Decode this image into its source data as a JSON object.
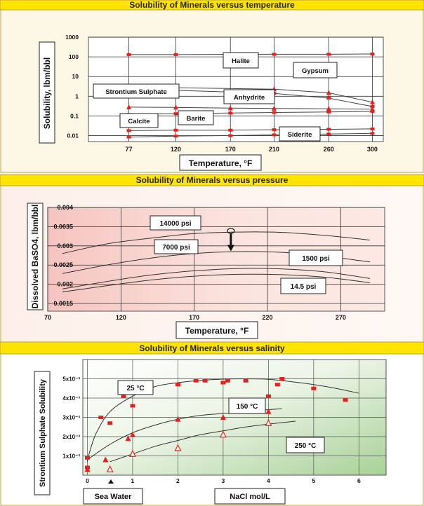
{
  "colors": {
    "banner_yellow": "#ffe400",
    "panel_border": "#b9a23e",
    "panel1_bg": "#fdf8e6",
    "marker_red": "#e8201c",
    "curve_dark": "#444444"
  },
  "chart_data": [
    {
      "type": "line",
      "title": "Solubility of Minerals versus temperature",
      "xlabel": "Temperature, °F",
      "ylabel": "Solubility, lbm/bbl",
      "yscale": "log",
      "ylim": [
        0.005,
        1000
      ],
      "xlim": [
        40,
        310
      ],
      "ytick_labels": [
        "1000",
        "100",
        "10",
        "1",
        "0.1",
        "0.01"
      ],
      "yticks": [
        1000,
        100,
        10,
        1,
        0.1,
        0.01
      ],
      "xticks": [
        77,
        120,
        170,
        210,
        260,
        300
      ],
      "xtick_labels": [
        "77",
        "120",
        "170",
        "210",
        "260",
        "300"
      ],
      "grid": true,
      "series": [
        {
          "name": "Halite",
          "x": [
            77,
            120,
            210,
            260,
            300
          ],
          "y": [
            130,
            130,
            135,
            135,
            140
          ],
          "marker": "square"
        },
        {
          "name": "Gypsum",
          "x": [
            77,
            120,
            210,
            260,
            300
          ],
          "y": [
            2.8,
            2.7,
            2.3,
            1.5,
            0.5
          ],
          "marker": "triangle"
        },
        {
          "name": "Strontium Sulphate",
          "x": [
            77,
            120,
            210,
            260,
            300
          ],
          "y": [
            2.3,
            2.0,
            1.4,
            0.8,
            0.3
          ],
          "marker": "square"
        },
        {
          "name": "Anhydrite",
          "x": [
            77,
            120,
            170,
            210,
            260,
            300
          ],
          "y": [
            0.28,
            0.27,
            0.25,
            0.24,
            0.23,
            0.22
          ],
          "marker": "triangle"
        },
        {
          "name": "Barite",
          "x": [
            77,
            120,
            170,
            210,
            260,
            300
          ],
          "y": [
            0.12,
            0.13,
            0.14,
            0.15,
            0.16,
            0.17
          ],
          "marker": "square"
        },
        {
          "name": "Calcite",
          "x": [
            77,
            120,
            170,
            210,
            260,
            300
          ],
          "y": [
            0.018,
            0.019,
            0.019,
            0.02,
            0.021,
            0.022
          ],
          "marker": "square"
        },
        {
          "name": "Siderite",
          "x": [
            77,
            120,
            170,
            210,
            260,
            300
          ],
          "y": [
            0.0085,
            0.0095,
            0.01,
            0.011,
            0.012,
            0.013
          ],
          "marker": "square"
        }
      ]
    },
    {
      "type": "line",
      "title": "Solubility of Minerals versus pressure",
      "xlabel": "Temperature, °F",
      "ylabel": "Dissolved BaSO4, lbm/bbl",
      "xlim": [
        70,
        300
      ],
      "ylim": [
        0.0013,
        0.004
      ],
      "xticks": [
        70,
        120,
        170,
        220,
        270
      ],
      "xtick_labels": [
        "70",
        "120",
        "170",
        "220",
        "270"
      ],
      "yticks": [
        0.004,
        0.0035,
        0.003,
        0.0025,
        0.002,
        0.0015
      ],
      "ytick_labels": [
        "0.004",
        "0.0035",
        "0.003",
        "0.0025",
        "0.002",
        "0.0015"
      ],
      "grid": true,
      "series": [
        {
          "name": "14000 psi",
          "x": [
            80,
            110,
            140,
            170,
            200,
            230,
            260,
            290
          ],
          "y": [
            0.0028,
            0.00305,
            0.0032,
            0.00332,
            0.00336,
            0.00335,
            0.00327,
            0.00315
          ]
        },
        {
          "name": "7000 psi",
          "x": [
            80,
            110,
            140,
            170,
            200,
            230,
            260,
            290
          ],
          "y": [
            0.00228,
            0.0025,
            0.00268,
            0.0028,
            0.00285,
            0.00283,
            0.00273,
            0.00258
          ]
        },
        {
          "name": "1500 psi",
          "x": [
            80,
            110,
            140,
            170,
            200,
            230,
            260,
            290
          ],
          "y": [
            0.00188,
            0.00207,
            0.00224,
            0.00235,
            0.00241,
            0.0024,
            0.00232,
            0.00215
          ]
        },
        {
          "name": "14.5 psi",
          "x": [
            80,
            110,
            140,
            170,
            200,
            230,
            260,
            290
          ],
          "y": [
            0.0018,
            0.00196,
            0.00211,
            0.00221,
            0.00226,
            0.00225,
            0.00218,
            0.00204
          ]
        }
      ]
    },
    {
      "type": "line",
      "title": "Solubility of Minerals versus salinity",
      "xlabel": "NaCl mol/L",
      "ylabel": "Strontium Sulphate Solubility",
      "xlim": [
        -0.1,
        6.6
      ],
      "ylim": [
        0,
        0.006
      ],
      "xticks": [
        0,
        1,
        2,
        3,
        4,
        5,
        6
      ],
      "xtick_labels": [
        "0",
        "1",
        "2",
        "3",
        "4",
        "5",
        "6"
      ],
      "yticks": [
        0.001,
        0.002,
        0.003,
        0.004,
        0.005
      ],
      "ytick_labels": [
        "1x10⁻³",
        "2x10⁻³",
        "3x10⁻³",
        "4x10⁻³",
        "5x10⁻³"
      ],
      "grid": true,
      "annotation": "Sea Water",
      "series": [
        {
          "name": "25 °C",
          "marker": "square",
          "x": [
            0,
            0,
            0.3,
            0.5,
            0.8,
            1.0,
            2.0,
            2.4,
            2.6,
            3.0,
            3.1,
            3.5,
            4.0,
            4.2,
            4.3,
            5.0,
            5.7
          ],
          "y": [
            0.0004,
            0.0009,
            0.003,
            0.0027,
            0.0041,
            0.0036,
            0.0047,
            0.0049,
            0.0049,
            0.0048,
            0.0049,
            0.0049,
            0.0041,
            0.0047,
            0.005,
            0.0045,
            0.0039
          ],
          "curve_x": [
            0,
            0.05,
            0.2,
            0.5,
            1.0,
            1.5,
            2.0,
            2.5,
            3.0,
            3.5,
            4.0,
            4.5,
            5.0,
            5.5,
            6.0
          ],
          "curve_y": [
            0.0007,
            0.0012,
            0.0022,
            0.0033,
            0.0041,
            0.0046,
            0.0048,
            0.00492,
            0.00498,
            0.005,
            0.00497,
            0.00485,
            0.0047,
            0.0045,
            0.00425
          ]
        },
        {
          "name": "150 °C",
          "marker": "triangle",
          "x": [
            0,
            0.4,
            0.9,
            1.0,
            2.0,
            3.0,
            4.0
          ],
          "y": [
            0.0003,
            0.0008,
            0.0019,
            0.0021,
            0.0029,
            0.003,
            0.0033
          ],
          "curve_x": [
            0,
            0.5,
            1.0,
            1.5,
            2.0,
            2.5,
            3.0,
            3.5,
            4.0,
            4.3
          ],
          "curve_y": [
            0.0008,
            0.0016,
            0.0022,
            0.0026,
            0.0029,
            0.0031,
            0.0032,
            0.0033,
            0.0034,
            0.00345
          ]
        },
        {
          "name": "250 °C",
          "marker": "triangle-open",
          "x": [
            0.5,
            1.0,
            2.0,
            3.0,
            4.0
          ],
          "y": [
            0.0003,
            0.0011,
            0.0014,
            0.0021,
            0.0027
          ],
          "curve_x": [
            0.5,
            1.0,
            1.5,
            2.0,
            2.5,
            3.0,
            3.5,
            4.0,
            4.6
          ],
          "curve_y": [
            0.0007,
            0.0011,
            0.0015,
            0.0018,
            0.0021,
            0.0023,
            0.0025,
            0.00265,
            0.0028
          ]
        }
      ]
    }
  ]
}
